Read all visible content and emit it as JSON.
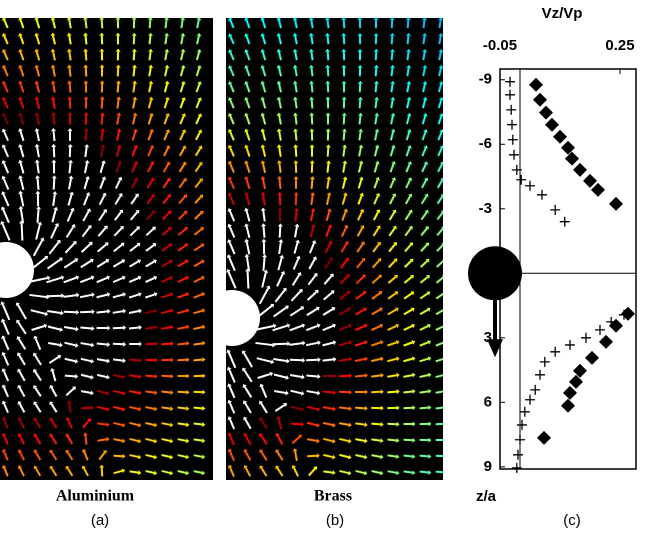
{
  "figure": {
    "panels": [
      {
        "label": "Aluminium",
        "tag": "(a)"
      },
      {
        "label": "Brass",
        "tag": "(b)"
      },
      {
        "tag": "(c)"
      }
    ]
  },
  "chart_data": {
    "type": "scatter",
    "title": "Vz/Vp",
    "y_label": "z/a",
    "xlim": [
      -0.05,
      0.29
    ],
    "xticks": [
      -0.05,
      0.25
    ],
    "x_axis_position": "top",
    "ylim": [
      -9.5,
      9.1
    ],
    "yticks": [
      -9,
      -6,
      -3,
      3,
      6,
      9
    ],
    "y_inverted": true,
    "series": [
      {
        "color": "#000000",
        "marker": "diamond",
        "x": [
          0.04,
          0.05,
          0.065,
          0.08,
          0.1,
          0.12,
          0.13,
          0.15,
          0.175,
          0.195,
          0.24,
          0.27,
          0.24,
          0.215,
          0.18,
          0.15,
          0.14,
          0.125,
          0.12,
          0.06
        ],
        "values": [
          -8.77,
          -8.07,
          -7.47,
          -6.91,
          -6.35,
          -5.84,
          -5.33,
          -4.81,
          -4.3,
          -3.88,
          -3.23,
          1.88,
          2.44,
          3.19,
          3.93,
          4.53,
          5.05,
          5.56,
          6.16,
          7.65
        ]
      },
      {
        "color": "#000000",
        "marker": "plus",
        "x": [
          -0.025,
          -0.025,
          -0.022,
          -0.02,
          -0.018,
          -0.015,
          -0.008,
          0.003,
          0.025,
          0.055,
          0.088,
          0.112,
          0.26,
          0.228,
          0.2,
          0.165,
          0.125,
          0.088,
          0.062,
          0.05,
          0.038,
          0.025,
          0.012,
          0.005,
          0,
          -0.005,
          -0.008
        ],
        "values": [
          -8.91,
          -8.3,
          -7.6,
          -6.91,
          -6.21,
          -5.51,
          -4.81,
          -4.35,
          -4.07,
          -3.65,
          -2.95,
          -2.4,
          1.93,
          2.26,
          2.63,
          3.0,
          3.33,
          3.65,
          4.12,
          4.72,
          5.42,
          5.88,
          6.44,
          7.05,
          7.74,
          8.44,
          9.05
        ]
      }
    ]
  }
}
